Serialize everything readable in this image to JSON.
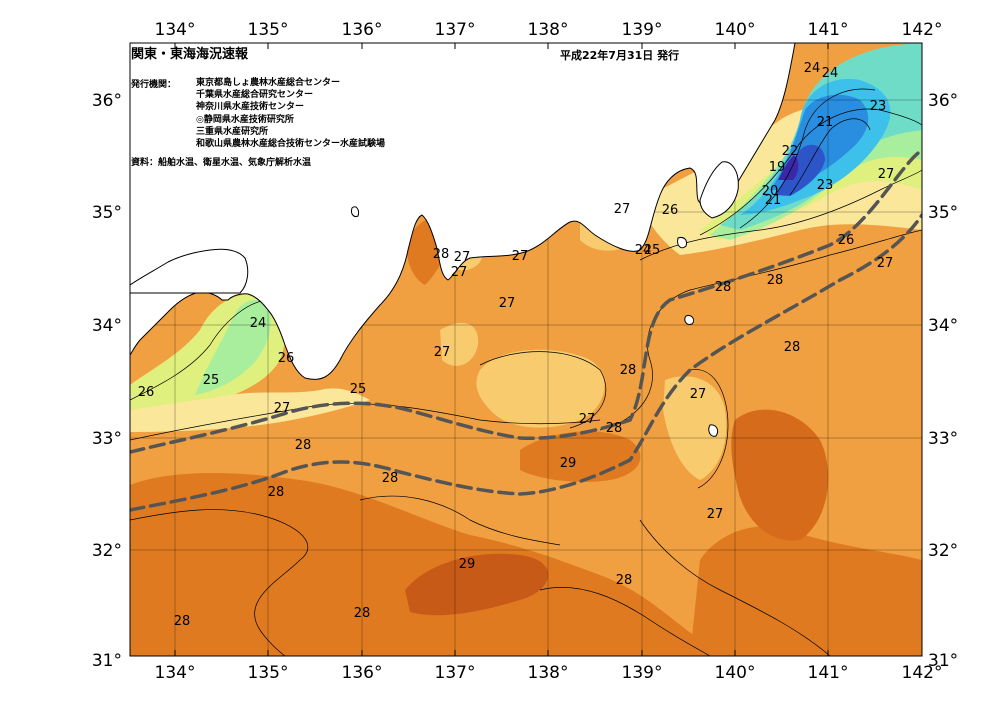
{
  "header": {
    "title": "関東・東海海況速報",
    "issue_date": "平成22年7月31日 発行",
    "issuers_label": "発行機関：",
    "issuers": [
      "東京都島しょ農林水産総合センター",
      "千葉県水産総合研究センター",
      "神奈川県水産技術センター",
      "◎静岡県水産技術研究所",
      "三重県水産研究所",
      "和歌山県農林水産総合技術センター水産試験場"
    ],
    "sources": "資料：船舶水温、衛星水温、気象庁解析水温"
  },
  "axes": {
    "lon_labels": [
      "134°",
      "135°",
      "136°",
      "137°",
      "138°",
      "139°",
      "140°",
      "141°",
      "142°"
    ],
    "lat_labels": [
      "36°",
      "35°",
      "34°",
      "33°",
      "32°",
      "31°"
    ]
  },
  "contour_labels": [
    "24",
    "24",
    "23",
    "21",
    "22",
    "19",
    "23",
    "20",
    "21",
    "27",
    "26",
    "27",
    "24",
    "26",
    "27",
    "25",
    "28",
    "28",
    "28",
    "27",
    "27",
    "28",
    "27",
    "27",
    "24",
    "26",
    "25",
    "26",
    "25",
    "27",
    "27",
    "28",
    "28",
    "28",
    "27",
    "28",
    "29",
    "27",
    "27",
    "28",
    "29",
    "28",
    "28",
    "28"
  ],
  "colors": {
    "sea_warm_28": "#f0a040",
    "sea_29": "#e07a20",
    "sea_30": "#c85a18",
    "sea_27": "#f7cb6e",
    "sea_26": "#fbe79a",
    "sea_25": "#dff07e",
    "sea_24": "#a9ee9c",
    "sea_23": "#6fdcc8",
    "sea_22": "#3dc0ea",
    "sea_21": "#2a8ee0",
    "sea_20": "#2d55c8",
    "sea_19": "#3b28a8",
    "land": "#ffffff",
    "kuroshio_axis": "#555555"
  }
}
